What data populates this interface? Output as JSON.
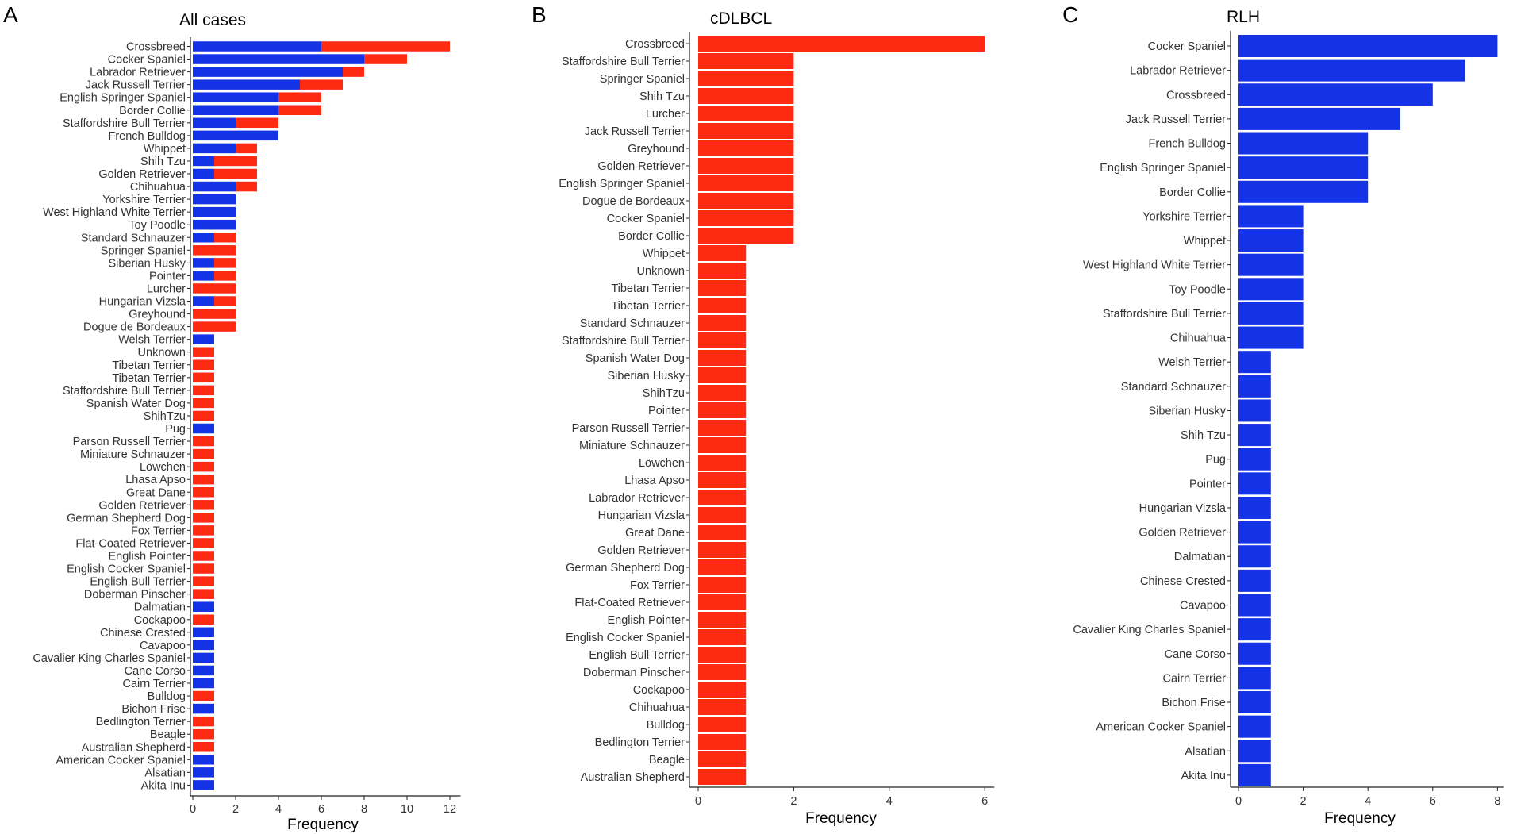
{
  "colors": {
    "blue": "#1432e6",
    "red": "#ff2a12",
    "axis": "#222222"
  },
  "chart_data": [
    {
      "type": "bar",
      "orientation": "horizontal",
      "stacked": true,
      "panel_letter": "A",
      "title": "All cases",
      "xlabel": "Frequency",
      "ylabel": "",
      "xlim": [
        0,
        12.5
      ],
      "xticks": [
        0,
        2,
        4,
        6,
        8,
        10,
        12
      ],
      "legend": "none",
      "categories": [
        "Crossbreed",
        "Cocker Spaniel",
        "Labrador Retriever",
        "Jack Russell Terrier",
        "English Springer Spaniel",
        "Border Collie",
        "Staffordshire Bull Terrier",
        "French Bulldog",
        "Whippet",
        "Shih Tzu",
        "Golden Retriever",
        "Chihuahua",
        "Yorkshire Terrier",
        "West Highland White Terrier",
        "Toy Poodle",
        "Standard Schnauzer",
        "Springer Spaniel",
        "Siberian Husky",
        "Pointer",
        "Lurcher",
        "Hungarian Vizsla",
        "Greyhound",
        "Dogue de Bordeaux",
        "Welsh Terrier",
        "Unknown",
        "Tibetan Terrier ",
        "Tibetan Terrier",
        "Staffordshire Bull Terrier ",
        "Spanish Water Dog",
        "ShihTzu",
        "Pug",
        "Parson Russell Terrier",
        "Miniature Schnauzer",
        "Löwchen",
        "Lhasa Apso",
        "Great Dane",
        "Golden Retriever ",
        "German Shepherd Dog",
        "Fox Terrier",
        "Flat-Coated Retriever",
        "English Pointer ",
        "English Cocker Spaniel",
        "English Bull Terrier",
        "Doberman Pinscher",
        "Dalmatian",
        "Cockapoo",
        "Chinese Crested",
        "Cavapoo",
        "Cavalier King Charles Spaniel",
        "Cane Corso",
        "Cairn Terrier",
        "Bulldog",
        "Bichon Frise",
        "Bedlington Terrier",
        "Beagle",
        "Australian Shepherd",
        "American Cocker Spaniel",
        "Alsatian",
        "Akita Inu"
      ],
      "series": [
        {
          "name": "RLH",
          "color": "blue",
          "values": [
            6,
            8,
            7,
            5,
            4,
            4,
            2,
            4,
            2,
            1,
            1,
            2,
            2,
            2,
            2,
            1,
            0,
            1,
            1,
            0,
            1,
            0,
            0,
            1,
            0,
            0,
            0,
            0,
            0,
            0,
            1,
            0,
            0,
            0,
            0,
            0,
            0,
            0,
            0,
            0,
            0,
            0,
            0,
            0,
            1,
            0,
            1,
            1,
            1,
            1,
            1,
            0,
            1,
            0,
            0,
            0,
            1,
            1,
            1
          ]
        },
        {
          "name": "cDLBCL",
          "color": "red",
          "values": [
            6,
            2,
            1,
            2,
            2,
            2,
            2,
            0,
            1,
            2,
            2,
            1,
            0,
            0,
            0,
            1,
            2,
            1,
            1,
            2,
            1,
            2,
            2,
            0,
            1,
            1,
            1,
            1,
            1,
            1,
            0,
            1,
            1,
            1,
            1,
            1,
            1,
            1,
            1,
            1,
            1,
            1,
            1,
            1,
            0,
            1,
            0,
            0,
            0,
            0,
            0,
            1,
            0,
            1,
            1,
            1,
            0,
            0,
            0
          ]
        }
      ]
    },
    {
      "type": "bar",
      "orientation": "horizontal",
      "panel_letter": "B",
      "title": "cDLBCL",
      "xlabel": "Frequency",
      "ylabel": "",
      "xlim": [
        0,
        6.2
      ],
      "xticks": [
        0,
        2,
        4,
        6
      ],
      "legend": "none",
      "color": "red",
      "categories": [
        "Crossbreed",
        "Staffordshire Bull Terrier",
        "Springer Spaniel",
        "Shih Tzu",
        "Lurcher",
        "Jack Russell Terrier",
        "Greyhound",
        "Golden Retriever",
        "English Springer Spaniel",
        "Dogue de Bordeaux",
        "Cocker Spaniel",
        "Border Collie",
        "Whippet",
        "Unknown",
        "Tibetan Terrier ",
        "Tibetan Terrier",
        "Standard Schnauzer",
        "Staffordshire Bull Terrier ",
        "Spanish Water Dog",
        "Siberian Husky",
        "ShihTzu",
        "Pointer",
        "Parson Russell Terrier",
        "Miniature Schnauzer",
        "Löwchen",
        "Lhasa Apso",
        "Labrador Retriever",
        "Hungarian Vizsla",
        "Great Dane",
        "Golden Retriever ",
        "German Shepherd Dog",
        "Fox Terrier",
        "Flat-Coated Retriever",
        "English Pointer",
        "English Cocker Spaniel ",
        "English Bull Terrier",
        "Doberman Pinscher",
        "Cockapoo",
        "Chihuahua",
        "Bulldog",
        "Bedlington Terrier",
        "Beagle",
        "Australian Shepherd"
      ],
      "values": [
        6,
        2,
        2,
        2,
        2,
        2,
        2,
        2,
        2,
        2,
        2,
        2,
        1,
        1,
        1,
        1,
        1,
        1,
        1,
        1,
        1,
        1,
        1,
        1,
        1,
        1,
        1,
        1,
        1,
        1,
        1,
        1,
        1,
        1,
        1,
        1,
        1,
        1,
        1,
        1,
        1,
        1,
        1
      ]
    },
    {
      "type": "bar",
      "orientation": "horizontal",
      "panel_letter": "C",
      "title": "RLH",
      "xlabel": "Frequency",
      "ylabel": "",
      "xlim": [
        0,
        8.2
      ],
      "xticks": [
        0,
        2,
        4,
        6,
        8
      ],
      "legend": "none",
      "color": "blue",
      "categories": [
        "Cocker Spaniel",
        "Labrador Retriever",
        "Crossbreed",
        "Jack Russell Terrier",
        "French Bulldog",
        "English Springer Spaniel",
        "Border Collie",
        "Yorkshire Terrier",
        "Whippet",
        "West Highland White Terrier",
        "Toy Poodle",
        "Staffordshire Bull Terrier",
        "Chihuahua",
        "Welsh Terrier",
        "Standard Schnauzer",
        "Siberian Husky",
        "Shih Tzu",
        "Pug",
        "Pointer",
        "Hungarian Vizsla",
        "Golden Retriever",
        "Dalmatian",
        "Chinese Crested",
        "Cavapoo",
        "Cavalier King Charles Spaniel",
        "Cane Corso",
        "Cairn Terrier",
        "Bichon Frise",
        "American Cocker Spaniel",
        "Alsatian",
        "Akita Inu"
      ],
      "values": [
        8,
        7,
        6,
        5,
        4,
        4,
        4,
        2,
        2,
        2,
        2,
        2,
        2,
        1,
        1,
        1,
        1,
        1,
        1,
        1,
        1,
        1,
        1,
        1,
        1,
        1,
        1,
        1,
        1,
        1,
        1
      ]
    }
  ]
}
